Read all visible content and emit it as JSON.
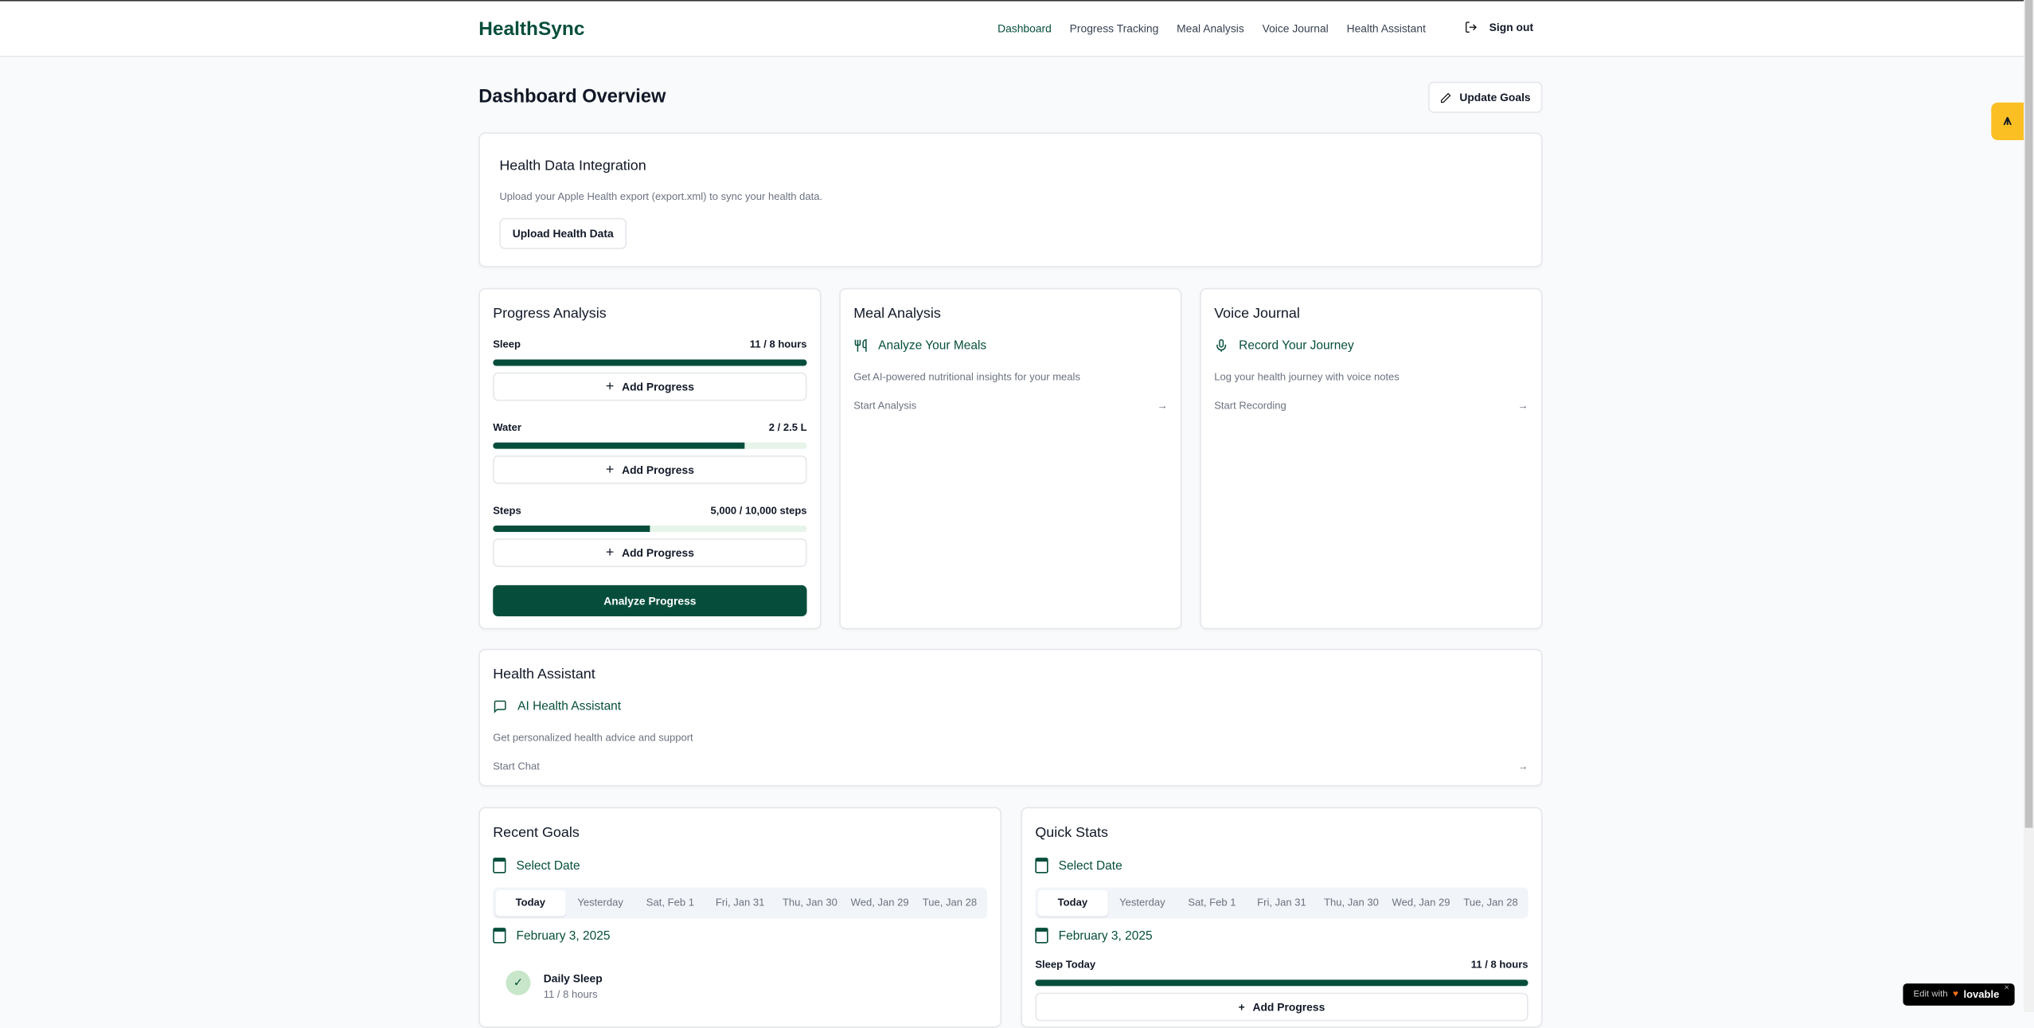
{
  "header": {
    "logo": "HealthSync",
    "nav": [
      "Dashboard",
      "Progress Tracking",
      "Meal Analysis",
      "Voice Journal",
      "Health Assistant"
    ],
    "active": "Dashboard",
    "signout": "Sign out"
  },
  "page": {
    "title": "Dashboard Overview",
    "update_goals": "Update Goals"
  },
  "integration": {
    "title": "Health Data Integration",
    "desc": "Upload your Apple Health export (export.xml) to sync your health data.",
    "button": "Upload Health Data"
  },
  "progress": {
    "title": "Progress Analysis",
    "items": [
      {
        "label": "Sleep",
        "value": "11 / 8 hours",
        "fraction": 1.0
      },
      {
        "label": "Water",
        "value": "2 / 2.5 L",
        "fraction": 0.8
      },
      {
        "label": "Steps",
        "value": "5,000 / 10,000 steps",
        "fraction": 0.5
      }
    ],
    "add": "Add Progress",
    "analyze": "Analyze Progress"
  },
  "meal": {
    "title": "Meal Analysis",
    "feature": "Analyze Your Meals",
    "desc": "Get AI-powered nutritional insights for your meals",
    "link": "Start Analysis"
  },
  "voice": {
    "title": "Voice Journal",
    "feature": "Record Your Journey",
    "desc": "Log your health journey with voice notes",
    "link": "Start Recording"
  },
  "assistant": {
    "title": "Health Assistant",
    "feature": "AI Health Assistant",
    "desc": "Get personalized health advice and support",
    "link": "Start Chat"
  },
  "dates": [
    "Today",
    "Yesterday",
    "Sat, Feb 1",
    "Fri, Jan 31",
    "Thu, Jan 30",
    "Wed, Jan 29",
    "Tue, Jan 28"
  ],
  "goals": {
    "title": "Recent Goals",
    "select": "Select Date",
    "date": "February 3, 2025",
    "item": {
      "name": "Daily Sleep",
      "value": "11 / 8 hours"
    }
  },
  "stats": {
    "title": "Quick Stats",
    "select": "Select Date",
    "date": "February 3, 2025",
    "label": "Sleep Today",
    "value": "11 / 8 hours",
    "fraction": 1.0,
    "add": "Add Progress"
  },
  "badge": {
    "text": "Edit with",
    "brand": "lovable"
  },
  "colors": {
    "primary": "#064e3b",
    "track": "#e6f4ea",
    "accent_tab": "#fbbf24"
  }
}
